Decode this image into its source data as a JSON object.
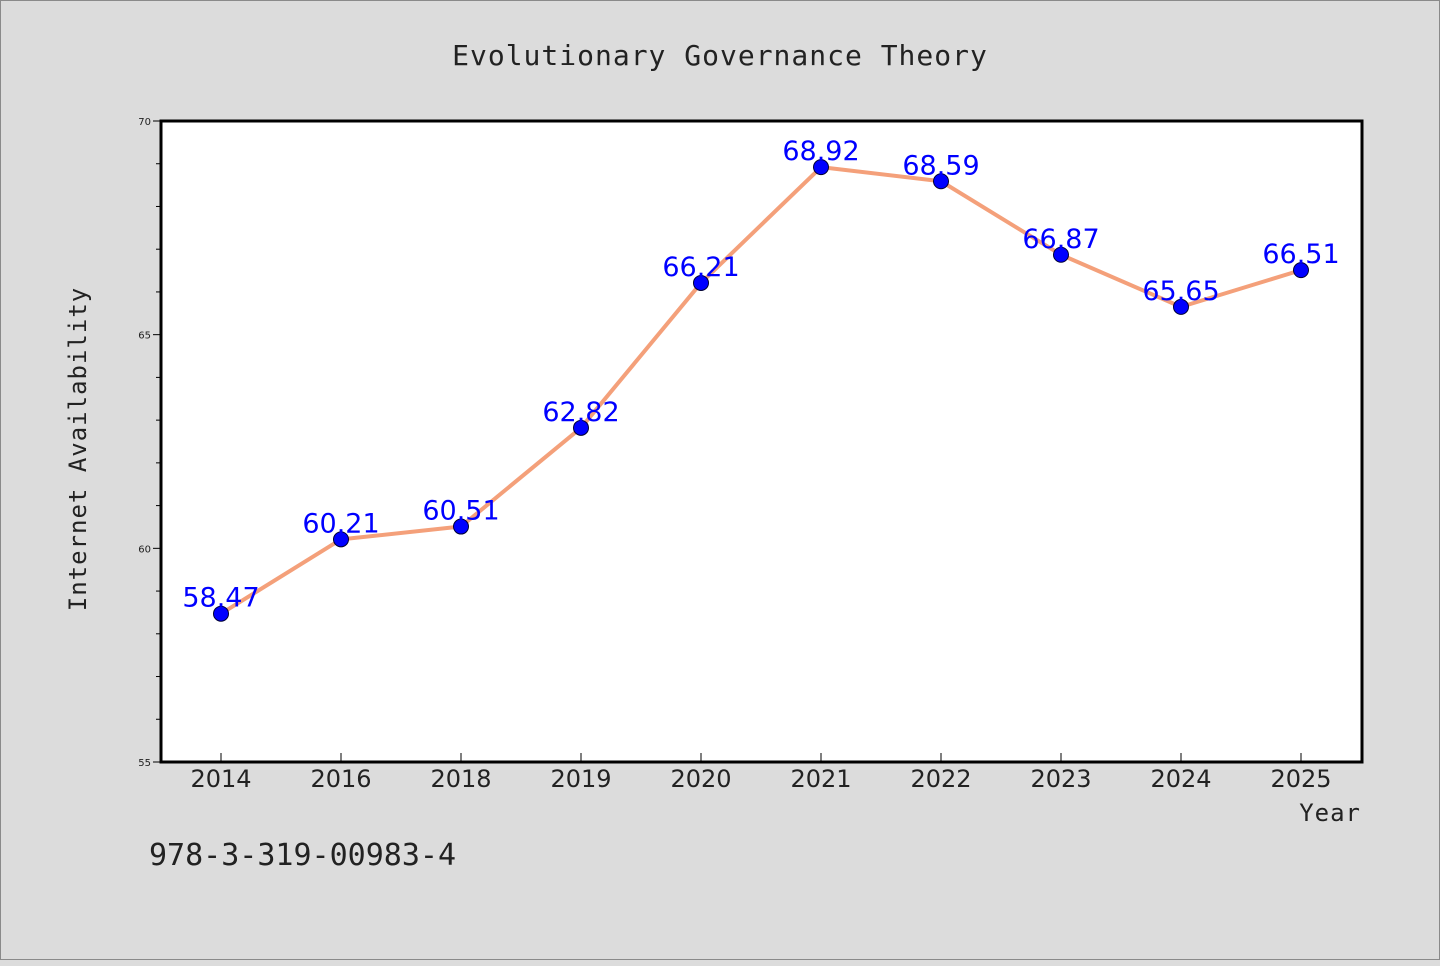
{
  "chart_data": {
    "type": "line",
    "title": "Evolutionary Governance Theory",
    "xlabel": "Year",
    "ylabel": "Internet Availability",
    "categories": [
      "2014",
      "2016",
      "2018",
      "2019",
      "2020",
      "2021",
      "2022",
      "2023",
      "2024",
      "2025"
    ],
    "series": [
      {
        "values": [
          58.47,
          60.21,
          60.51,
          62.82,
          66.21,
          68.92,
          68.59,
          66.87,
          65.65,
          66.51
        ]
      }
    ],
    "data_labels": [
      "58.47",
      "60.21",
      "60.51",
      "62.82",
      "66.21",
      "68.92",
      "68.59",
      "66.87",
      "65.65",
      "66.51"
    ],
    "ylim": [
      55,
      70
    ],
    "yticks": [
      55,
      60,
      65,
      70
    ],
    "ytick_labels": [
      "55",
      "60",
      "65",
      "70"
    ],
    "grid": false,
    "legend": "none",
    "colors": {
      "line": "#f4a07a",
      "marker": "#0000ff",
      "data_label": "#0000ff",
      "plot_background": "#ffffff",
      "figure_background": "#dcdcdc"
    }
  },
  "footer": {
    "text": "978-3-319-00983-4"
  }
}
